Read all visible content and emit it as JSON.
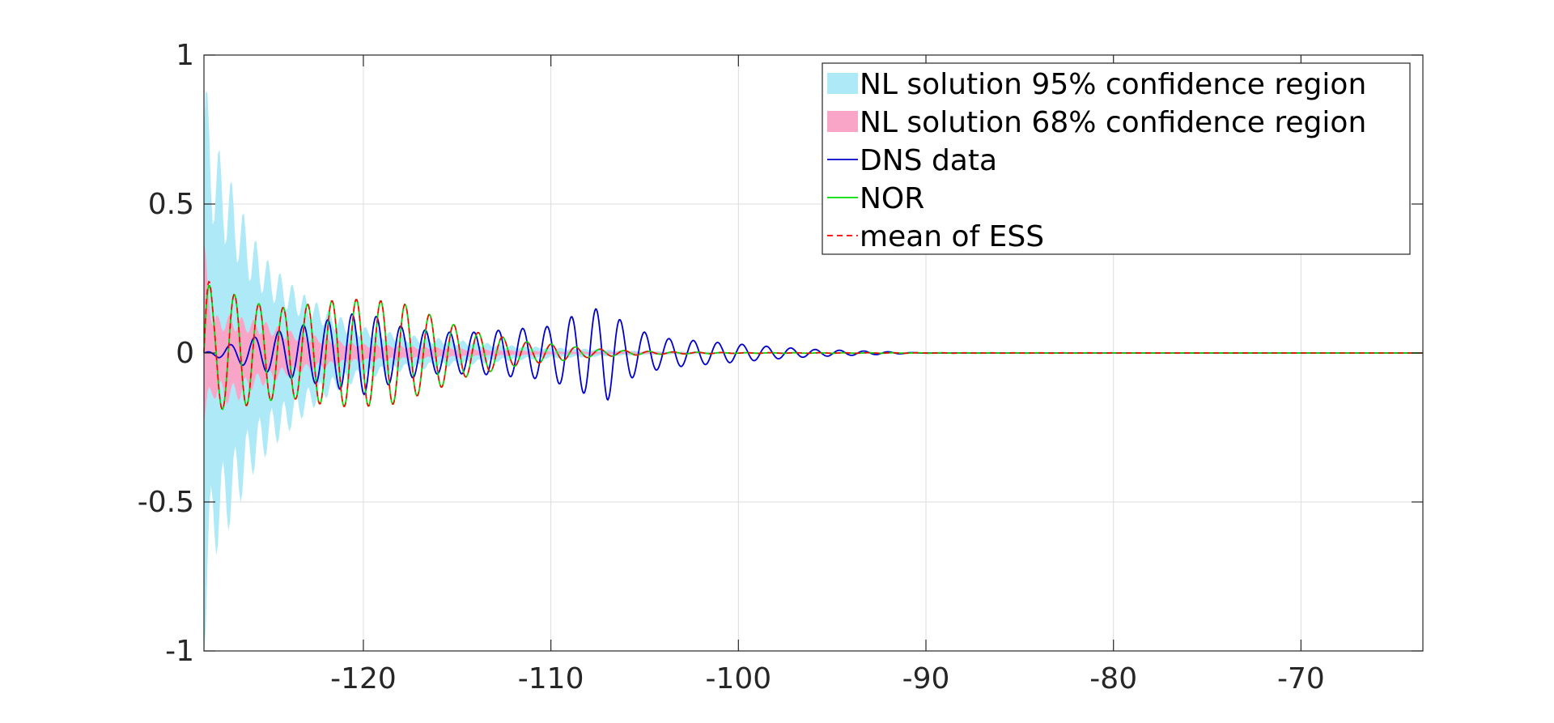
{
  "chart_data": {
    "type": "line",
    "title": "",
    "xlabel": "",
    "ylabel": "",
    "xlim": [
      -128.5,
      -63.5
    ],
    "ylim": [
      -1,
      1
    ],
    "grid": true,
    "legend_placement": "top-right",
    "x_ticks": [
      -120,
      -110,
      -100,
      -90,
      -80,
      -70
    ],
    "x_tick_labels": [
      "-120",
      "-110",
      "-100",
      "-90",
      "-80",
      "-70"
    ],
    "y_ticks": [
      1,
      0.5,
      0,
      -0.5,
      -1
    ],
    "y_tick_labels": [
      "1",
      "0.5",
      "0",
      "-0.5",
      "-1"
    ],
    "colors": {
      "ci95": "#aee9f8",
      "ci68": "#f9a5c8",
      "dns": "#0000cc",
      "nor": "#00dd00",
      "ess": "#ff0000"
    },
    "legend": [
      {
        "label": "NL solution 95% confidence region",
        "kind": "patch",
        "color": "#aee9f8"
      },
      {
        "label": "NL solution 68% confidence region",
        "kind": "patch",
        "color": "#f9a5c8"
      },
      {
        "label": "DNS data",
        "kind": "line",
        "color": "#0000cc"
      },
      {
        "label": "NOR",
        "kind": "line",
        "color": "#00dd00"
      },
      {
        "label": "mean of ESS",
        "kind": "dashed",
        "color": "#ff0000"
      }
    ],
    "bands": [
      {
        "name": "NL solution 95% confidence region",
        "x": [
          -128.5,
          -128,
          -127,
          -126,
          -125,
          -124,
          -123,
          -122,
          -121,
          -120,
          -118,
          -116,
          -114,
          -112,
          -110,
          -105,
          -100,
          -63.5
        ],
        "upper": [
          0.75,
          0.58,
          0.45,
          0.32,
          0.24,
          0.19,
          0.15,
          0.12,
          0.09,
          0.07,
          0.05,
          0.04,
          0.03,
          0.02,
          0.015,
          0.005,
          0.002,
          0.0
        ],
        "lower": [
          -0.8,
          -0.55,
          -0.45,
          -0.33,
          -0.26,
          -0.21,
          -0.16,
          -0.12,
          -0.09,
          -0.07,
          -0.05,
          -0.04,
          -0.03,
          -0.02,
          -0.015,
          -0.005,
          -0.002,
          0.0
        ]
      },
      {
        "name": "NL solution 68% confidence region",
        "x": [
          -128.5,
          -128,
          -127,
          -126,
          -125,
          -124,
          -123,
          -122,
          -121,
          -120,
          -118,
          -116,
          -114,
          -112,
          -110,
          -100,
          -63.5
        ],
        "upper": [
          0.3,
          0.1,
          0.1,
          0.09,
          0.08,
          0.06,
          0.05,
          0.04,
          0.03,
          0.025,
          0.02,
          0.015,
          0.01,
          0.008,
          0.005,
          0.001,
          0.0
        ],
        "lower": [
          -0.2,
          -0.12,
          -0.14,
          -0.1,
          -0.08,
          -0.06,
          -0.05,
          -0.04,
          -0.03,
          -0.025,
          -0.02,
          -0.015,
          -0.01,
          -0.008,
          -0.005,
          -0.001,
          0.0
        ]
      }
    ],
    "series": [
      {
        "name": "DNS data",
        "x": [
          -128.5,
          -126,
          -123.5,
          -122,
          -120,
          -118,
          -116,
          -114,
          -112,
          -110,
          -109,
          -108,
          -107,
          -106,
          -104,
          -102,
          -100,
          -98,
          -96,
          -94,
          -92,
          -90,
          -63.5
        ],
        "amp": [
          0.0,
          0.05,
          0.09,
          0.11,
          0.14,
          0.09,
          0.07,
          0.07,
          0.08,
          0.09,
          0.12,
          0.14,
          0.16,
          0.09,
          0.05,
          0.04,
          0.03,
          0.02,
          0.012,
          0.008,
          0.004,
          0.0,
          0.0
        ],
        "period": 1.3
      },
      {
        "name": "NOR",
        "x": [
          -128.5,
          -128,
          -127,
          -126,
          -124,
          -122.5,
          -121,
          -120,
          -118,
          -117,
          -116,
          -115,
          -114,
          -113,
          -112,
          -111,
          -110,
          -108,
          -106,
          -104,
          -100,
          -63.5
        ],
        "amp": [
          0.3,
          0.18,
          0.2,
          0.17,
          0.15,
          0.17,
          0.18,
          0.18,
          0.17,
          0.14,
          0.12,
          0.09,
          0.07,
          0.06,
          0.045,
          0.035,
          0.03,
          0.015,
          0.008,
          0.004,
          0.001,
          0.0
        ],
        "period": 1.3
      },
      {
        "name": "mean of ESS",
        "x": [
          -128.5,
          -128,
          -127,
          -126,
          -124,
          -122.5,
          -121,
          -120,
          -118,
          -117,
          -116,
          -115,
          -114,
          -113,
          -112,
          -111,
          -110,
          -108,
          -106,
          -104,
          -100,
          -63.5
        ],
        "amp": [
          0.33,
          0.18,
          0.2,
          0.17,
          0.15,
          0.17,
          0.18,
          0.18,
          0.17,
          0.14,
          0.12,
          0.09,
          0.07,
          0.06,
          0.045,
          0.035,
          0.03,
          0.015,
          0.008,
          0.004,
          0.001,
          0.0
        ],
        "period": 1.3
      }
    ]
  }
}
